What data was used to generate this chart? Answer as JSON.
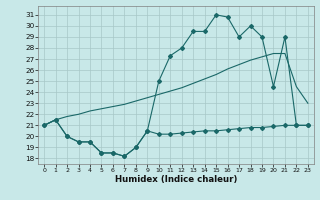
{
  "bg_color": "#c8e8e8",
  "grid_color": "#a8c8c8",
  "line_color": "#1a6868",
  "xlim": [
    -0.5,
    23.5
  ],
  "ylim": [
    17.5,
    31.8
  ],
  "xticks": [
    0,
    1,
    2,
    3,
    4,
    5,
    6,
    7,
    8,
    9,
    10,
    11,
    12,
    13,
    14,
    15,
    16,
    17,
    18,
    19,
    20,
    21,
    22,
    23
  ],
  "yticks": [
    18,
    19,
    20,
    21,
    22,
    23,
    24,
    25,
    26,
    27,
    28,
    29,
    30,
    31
  ],
  "xlabel": "Humidex (Indice chaleur)",
  "line_min_x": [
    0,
    1,
    2,
    3,
    4,
    5,
    6,
    7,
    8,
    9,
    10,
    11,
    12,
    13,
    14,
    15,
    16,
    17,
    18,
    19,
    20,
    21,
    22,
    23
  ],
  "line_min_y": [
    21.0,
    21.5,
    20.0,
    19.5,
    19.5,
    18.5,
    18.5,
    18.2,
    19.0,
    20.5,
    20.2,
    20.2,
    20.3,
    20.4,
    20.5,
    20.5,
    20.6,
    20.7,
    20.8,
    20.8,
    20.9,
    21.0,
    21.0,
    21.0
  ],
  "line_mean_x": [
    0,
    1,
    2,
    3,
    4,
    5,
    6,
    7,
    8,
    9,
    10,
    11,
    12,
    13,
    14,
    15,
    16,
    17,
    18,
    19,
    20,
    21,
    22,
    23
  ],
  "line_mean_y": [
    21.0,
    21.5,
    21.8,
    22.0,
    22.3,
    22.5,
    22.7,
    22.9,
    23.2,
    23.5,
    23.8,
    24.1,
    24.4,
    24.8,
    25.2,
    25.6,
    26.1,
    26.5,
    26.9,
    27.2,
    27.5,
    27.5,
    24.5,
    23.0
  ],
  "line_max_x": [
    0,
    1,
    2,
    3,
    4,
    5,
    6,
    7,
    8,
    9,
    10,
    11,
    12,
    13,
    14,
    15,
    16,
    17,
    18,
    19,
    20,
    21,
    22,
    23
  ],
  "line_max_y": [
    21.0,
    21.5,
    20.0,
    19.5,
    19.5,
    18.5,
    18.5,
    18.2,
    19.0,
    20.5,
    25.0,
    27.3,
    28.0,
    29.5,
    29.5,
    31.0,
    30.8,
    29.0,
    30.0,
    29.0,
    24.5,
    29.0,
    21.0,
    21.0
  ]
}
